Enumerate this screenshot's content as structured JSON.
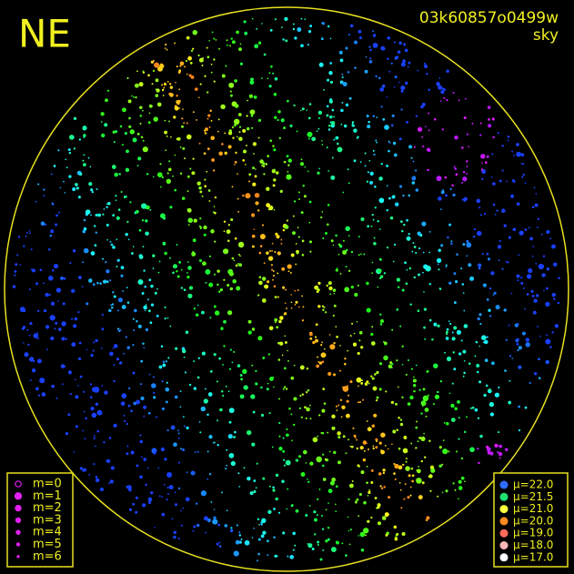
{
  "image": {
    "label": "NE",
    "id": "03k60857o0499w",
    "subtitle": "sky"
  },
  "legend_m": {
    "items": [
      "m=0",
      "m=1",
      "m=2",
      "m=3",
      "m=4",
      "m=5",
      "m=6"
    ],
    "color": "#e020f0"
  },
  "legend_mu": {
    "items": [
      {
        "label": "μ=22.0",
        "color": "#2f6cff"
      },
      {
        "label": "μ=21.5",
        "color": "#20e070"
      },
      {
        "label": "μ=21.0",
        "color": "#ffff40"
      },
      {
        "label": "μ=20.0",
        "color": "#ff8a20"
      },
      {
        "label": "μ=19.0",
        "color": "#ff6a5a"
      },
      {
        "label": "μ=18.0",
        "color": "#ffb6b6"
      },
      {
        "label": "μ=17.0",
        "color": "#ffffff"
      }
    ]
  }
}
